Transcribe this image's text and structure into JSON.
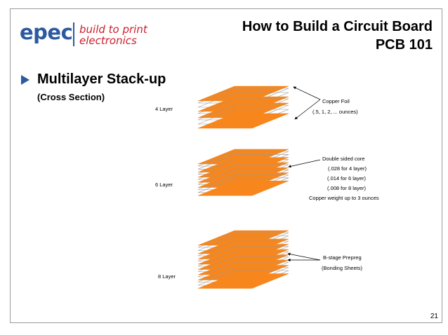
{
  "logo": {
    "word": "epec",
    "tagline_line1": "build to print",
    "tagline_line2": "electronics"
  },
  "title": {
    "line1": "How to Build a Circuit Board",
    "line2": "PCB 101"
  },
  "heading": "Multilayer Stack-up",
  "subheading": "(Cross Section)",
  "stacks": [
    {
      "label": "4 Layer"
    },
    {
      "label": "6 Layer"
    },
    {
      "label": "8 Layer"
    }
  ],
  "annotations": {
    "copper_foil": [
      "Copper Foil",
      "(.5, 1, 2, ... ounces)"
    ],
    "core": [
      "Double sided core",
      "(.028 for 4 layer)",
      "(.014 for 6 layer)",
      "(.008 for 8 layer)",
      "Copper weight up to 3 ounces"
    ],
    "prepreg": [
      "B-stage Prepreg",
      "(Bonding Sheets)"
    ]
  },
  "page_number": "21",
  "colors": {
    "copper": "#f7861c",
    "accent_blue": "#2c5aa0",
    "accent_red": "#cc1f2a"
  }
}
